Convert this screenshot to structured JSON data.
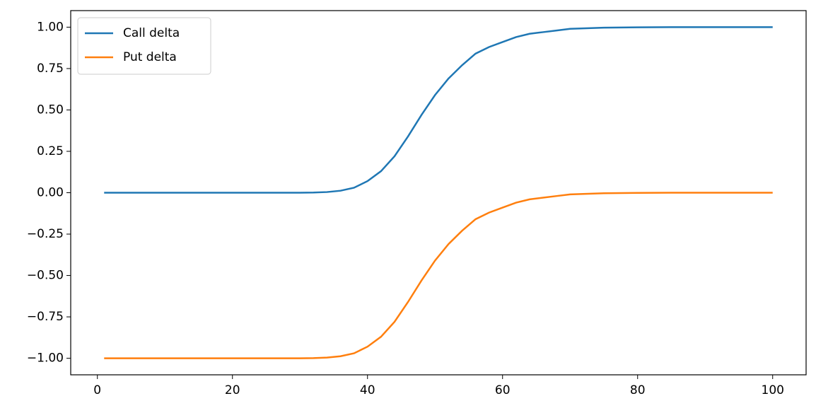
{
  "chart_data": {
    "type": "line",
    "x": [
      1,
      5,
      10,
      15,
      20,
      25,
      30,
      32,
      34,
      36,
      38,
      40,
      42,
      44,
      46,
      48,
      50,
      52,
      54,
      56,
      58,
      60,
      62,
      64,
      66,
      68,
      70,
      75,
      80,
      85,
      90,
      95,
      100
    ],
    "series": [
      {
        "name": "Call delta",
        "color": "#1f77b4",
        "values": [
          0,
          0,
          0,
          0,
          0,
          0,
          0,
          0.001,
          0.004,
          0.012,
          0.03,
          0.07,
          0.13,
          0.22,
          0.34,
          0.47,
          0.59,
          0.69,
          0.77,
          0.84,
          0.88,
          0.91,
          0.94,
          0.96,
          0.97,
          0.98,
          0.99,
          0.997,
          0.999,
          1,
          1,
          1,
          1
        ]
      },
      {
        "name": "Put delta",
        "color": "#ff7f0e",
        "values": [
          -1,
          -1,
          -1,
          -1,
          -1,
          -1,
          -1,
          -0.999,
          -0.996,
          -0.988,
          -0.97,
          -0.93,
          -0.87,
          -0.78,
          -0.66,
          -0.53,
          -0.41,
          -0.31,
          -0.23,
          -0.16,
          -0.12,
          -0.09,
          -0.06,
          -0.04,
          -0.03,
          -0.02,
          -0.01,
          -0.003,
          -0.001,
          0,
          0,
          0,
          0
        ]
      }
    ],
    "xlim": [
      -3.95,
      104.95
    ],
    "ylim": [
      -1.1,
      1.1
    ],
    "xticks": [
      0,
      20,
      40,
      60,
      80,
      100
    ],
    "yticks": [
      {
        "value": 1,
        "label": "1.00"
      },
      {
        "value": 0.75,
        "label": "0.75"
      },
      {
        "value": 0.5,
        "label": "0.50"
      },
      {
        "value": 0.25,
        "label": "0.25"
      },
      {
        "value": 0,
        "label": "0.00"
      },
      {
        "value": -0.25,
        "label": "−0.25"
      },
      {
        "value": -0.5,
        "label": "−0.50"
      },
      {
        "value": -0.75,
        "label": "−0.75"
      },
      {
        "value": -1,
        "label": "−1.00"
      }
    ],
    "legend": "upper left"
  }
}
